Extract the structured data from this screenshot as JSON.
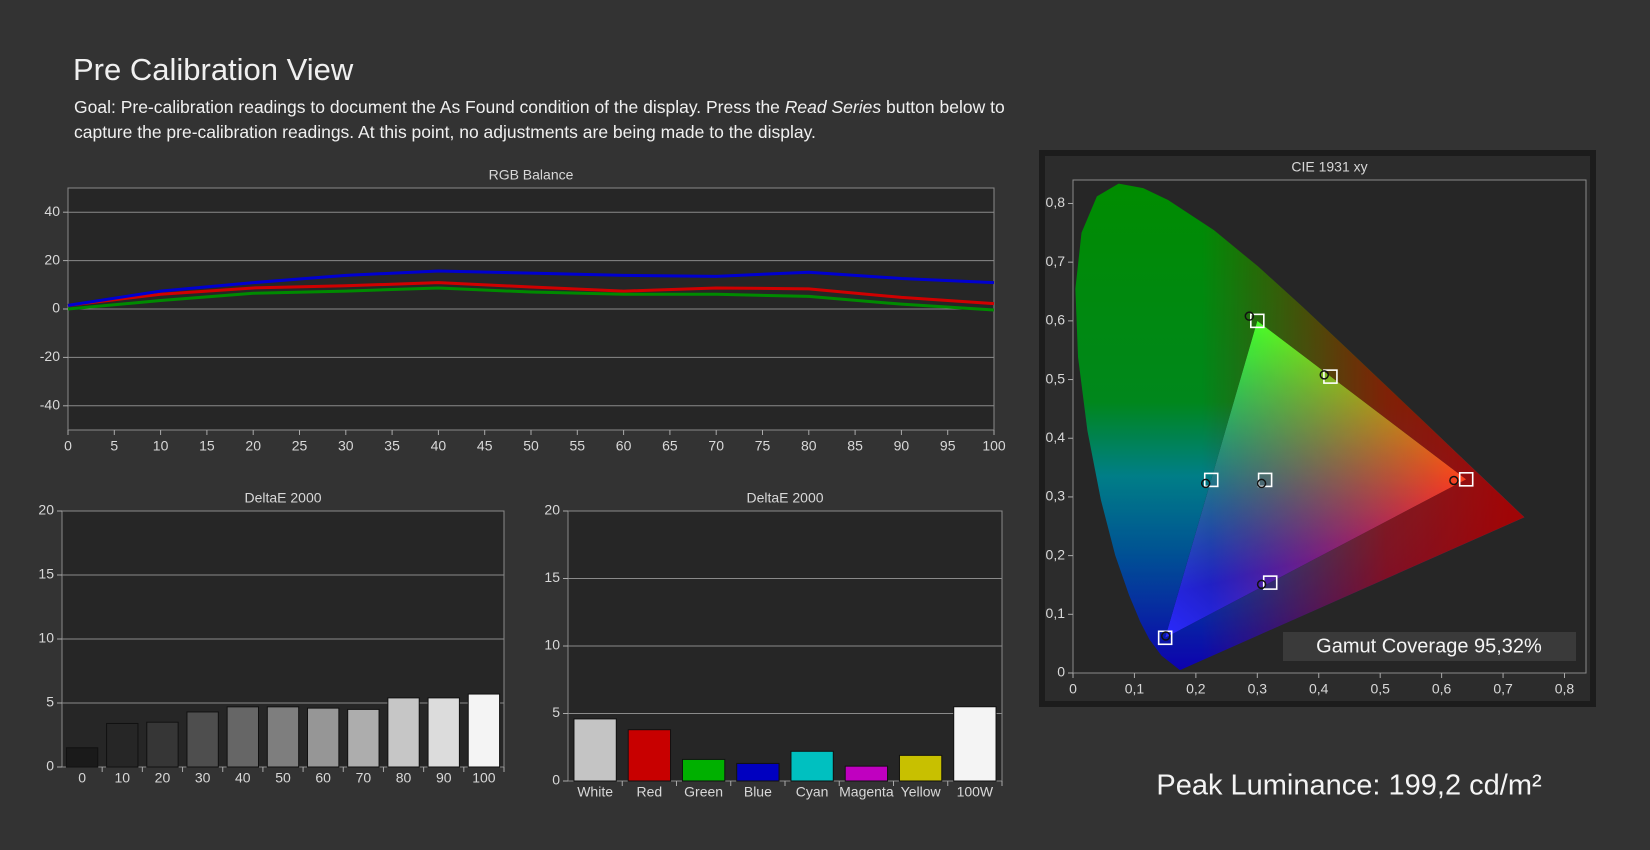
{
  "title": "Pre Calibration View",
  "description": {
    "line1_start": "Goal: Pre-calibration readings to document the As Found condition of the display. Press the",
    "emphasis": "Read Series",
    "line1_end": "button below to",
    "line2": "capture the pre-calibration readings. At this point, no adjustments are being made to the display."
  },
  "chart_data": [
    {
      "type": "line",
      "title": "RGB Balance",
      "x": [
        0,
        10,
        20,
        30,
        40,
        50,
        60,
        70,
        80,
        90,
        100
      ],
      "series": [
        {
          "color": "#d00000",
          "values": [
            1.5,
            6.1,
            8.7,
            9.6,
            10.9,
            9.1,
            7.4,
            8.7,
            8.3,
            4.8,
            2.2
          ]
        },
        {
          "color": "#008a00",
          "values": [
            0,
            3.5,
            6.5,
            7.4,
            8.7,
            7,
            6.1,
            6.1,
            5.2,
            2,
            -0.4
          ]
        },
        {
          "color": "#0000d0",
          "values": [
            1.5,
            7.4,
            10.9,
            13.9,
            15.7,
            14.8,
            13.9,
            13.5,
            15.2,
            12.6,
            10.9
          ]
        }
      ],
      "xlim": [
        0,
        100
      ],
      "xticks": [
        0,
        5,
        10,
        15,
        20,
        25,
        30,
        35,
        40,
        45,
        50,
        55,
        60,
        65,
        70,
        75,
        80,
        85,
        90,
        95,
        100
      ],
      "ylim": [
        -50,
        50
      ],
      "yticks": [
        -40,
        -20,
        0,
        20,
        40
      ],
      "grid": true
    },
    {
      "type": "bar",
      "title": "DeltaE 2000",
      "categories": [
        "0",
        "10",
        "20",
        "30",
        "40",
        "50",
        "60",
        "70",
        "80",
        "90",
        "100"
      ],
      "values": [
        1.5,
        3.4,
        3.5,
        4.3,
        4.7,
        4.7,
        4.6,
        4.5,
        5.4,
        5.4,
        5.7
      ],
      "colors": [
        "#1a1a1a",
        "#262626",
        "#363636",
        "#4e4e4e",
        "#666666",
        "#7e7e7e",
        "#969696",
        "#adadad",
        "#c6c6c6",
        "#dcdcdc",
        "#f4f4f4"
      ],
      "ylim": [
        0,
        20
      ],
      "yticks": [
        0,
        5,
        10,
        15,
        20
      ],
      "grid": true
    },
    {
      "type": "bar",
      "title": "DeltaE 2000",
      "categories": [
        "White",
        "Red",
        "Green",
        "Blue",
        "Cyan",
        "Magenta",
        "Yellow",
        "100W"
      ],
      "values": [
        4.6,
        3.8,
        1.6,
        1.3,
        2.2,
        1.1,
        1.9,
        5.5
      ],
      "colors": [
        "#c4c4c4",
        "#c80000",
        "#00b000",
        "#0000c0",
        "#00c0c0",
        "#c000c0",
        "#c8c000",
        "#f4f4f4"
      ],
      "ylim": [
        0,
        20
      ],
      "yticks": [
        0,
        5,
        10,
        15,
        20
      ],
      "grid": true
    },
    {
      "type": "scatter",
      "title": "CIE 1931 xy",
      "targets": {
        "x": [
          0.64,
          0.3,
          0.15,
          0.225,
          0.321,
          0.419,
          0.3127
        ],
        "y": [
          0.33,
          0.6,
          0.06,
          0.329,
          0.154,
          0.505,
          0.329
        ]
      },
      "measured": {
        "x": [
          0.62,
          0.287,
          0.151,
          0.216,
          0.307,
          0.409,
          0.307
        ],
        "y": [
          0.328,
          0.608,
          0.063,
          0.323,
          0.151,
          0.508,
          0.323
        ]
      },
      "xlim": [
        0,
        0.835
      ],
      "ylim": [
        0,
        0.84
      ],
      "xticks": [
        0,
        {
          "value": 0.1,
          "label": "0,1"
        },
        {
          "value": 0.2,
          "label": "0,2"
        },
        {
          "value": 0.3,
          "label": "0,3"
        },
        {
          "value": 0.4,
          "label": "0,4"
        },
        {
          "value": 0.5,
          "label": "0,5"
        },
        {
          "value": 0.6,
          "label": "0,6"
        },
        {
          "value": 0.7,
          "label": "0,7"
        },
        {
          "value": 0.8,
          "label": "0,8"
        }
      ],
      "yticks": [
        0,
        {
          "value": 0.1,
          "label": "0,1"
        },
        {
          "value": 0.2,
          "label": "0,2"
        },
        {
          "value": 0.3,
          "label": "0,3"
        },
        {
          "value": 0.4,
          "label": "0,4"
        },
        {
          "value": 0.5,
          "label": "0,5"
        },
        {
          "value": 0.6,
          "label": "0,6"
        },
        {
          "value": 0.7,
          "label": "0,7"
        },
        {
          "value": 0.8,
          "label": "0,8"
        }
      ],
      "grid": false,
      "annotation": "Gamut Coverage 95,32%"
    }
  ],
  "peak_luminance": "Peak Luminance: 199,2 cd/m²"
}
